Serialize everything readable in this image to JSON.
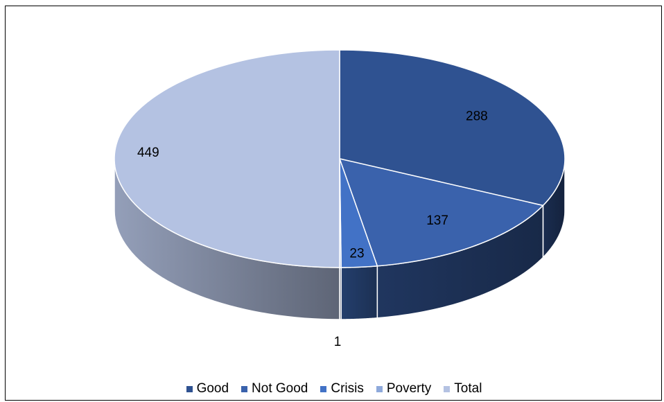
{
  "chart_data": {
    "type": "pie",
    "style": "3d",
    "title": "",
    "legend_position": "bottom",
    "series": [
      {
        "name": "Good",
        "value": 288,
        "color": "#2F5291",
        "label": "288"
      },
      {
        "name": "Not Good",
        "value": 137,
        "color": "#3A62AC",
        "label": "137"
      },
      {
        "name": "Crisis",
        "value": 23,
        "color": "#4272C6",
        "label": "23"
      },
      {
        "name": "Poverty",
        "value": 1,
        "color": "#8EA9DB",
        "label": "1"
      },
      {
        "name": "Total",
        "value": 449,
        "color": "#B4C2E2",
        "label": "449"
      }
    ]
  }
}
